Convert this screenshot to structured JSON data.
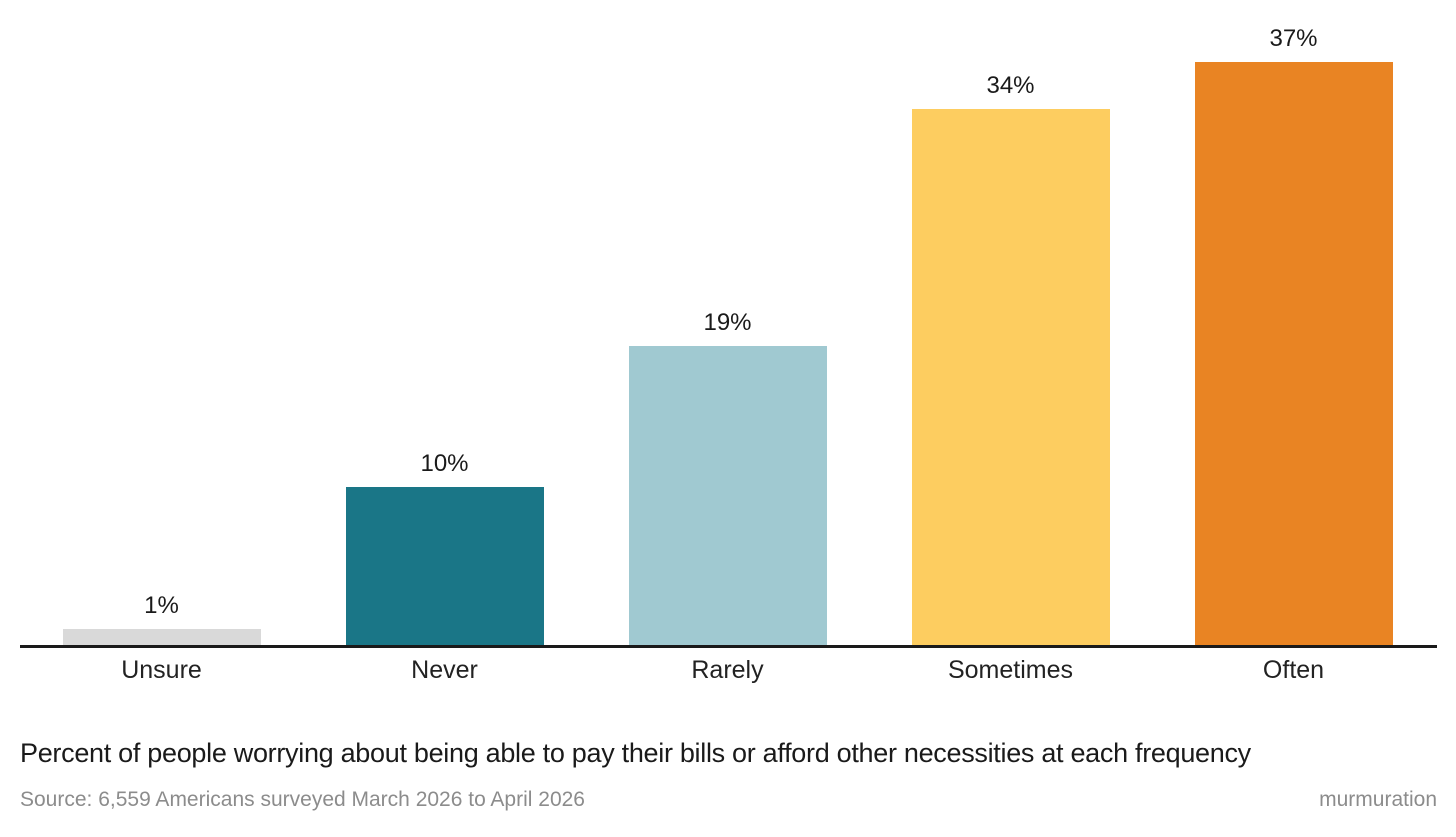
{
  "chart_data": {
    "type": "bar",
    "orientation": "vertical",
    "categories": [
      "Unsure",
      "Never",
      "Rarely",
      "Sometimes",
      "Often"
    ],
    "values": [
      1,
      10,
      19,
      34,
      37
    ],
    "value_labels": [
      "1%",
      "10%",
      "19%",
      "34%",
      "37%"
    ],
    "bar_colors": [
      "#d9d9d9",
      "#1a7687",
      "#a0c9d1",
      "#fdcd60",
      "#e98423"
    ],
    "title": "Percent of people worrying about being able to pay their bills or afford other necessities at each frequency",
    "xlabel": "",
    "ylabel": "",
    "ylim": [
      0,
      40
    ],
    "grid": false,
    "legend_position": "none",
    "axis_color": "#1a1a1a"
  },
  "footer": {
    "source": "Source: 6,559 Americans surveyed March 2026 to April 2026",
    "brand": "murmuration"
  },
  "colors": {
    "background": "#ffffff",
    "title_text": "#1a1a1a",
    "value_label_text": "#1a1a1a",
    "category_label_text": "#222222",
    "muted_text": "#8c8c8c"
  }
}
